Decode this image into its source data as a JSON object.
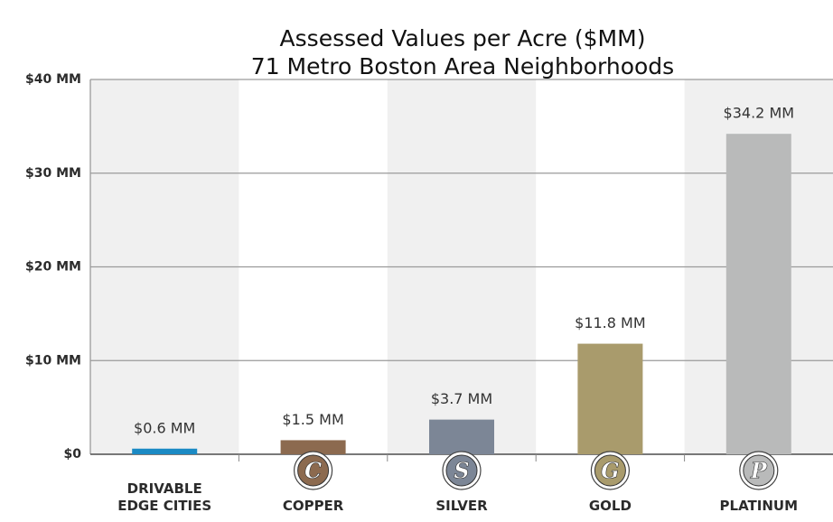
{
  "chart_data": {
    "type": "bar",
    "title": "Assessed Values per Acre ($MM)",
    "subtitle": "71 Metro Boston Area Neighborhoods",
    "categories": [
      "DRIVABLE EDGE CITIES",
      "COPPER",
      "SILVER",
      "GOLD",
      "PLATINUM"
    ],
    "category_badges": [
      null,
      "C",
      "S",
      "G",
      "P"
    ],
    "values": [
      0.6,
      1.5,
      3.7,
      11.8,
      34.2
    ],
    "value_labels": [
      "$0.6 MM",
      "$1.5 MM",
      "$3.7 MM",
      "$11.8 MM",
      "$34.2 MM"
    ],
    "colors": [
      "#1b8ac4",
      "#8c6a4f",
      "#7c8696",
      "#a99b6c",
      "#b9baba"
    ],
    "ylim": [
      0,
      40
    ],
    "yticks": [
      {
        "value": 0,
        "label": "$0"
      },
      {
        "value": 10,
        "label": "$10 MM"
      },
      {
        "value": 20,
        "label": "$20 MM"
      },
      {
        "value": 30,
        "label": "$30 MM"
      },
      {
        "value": 40,
        "label": "$40 MM"
      }
    ],
    "grid": true
  }
}
